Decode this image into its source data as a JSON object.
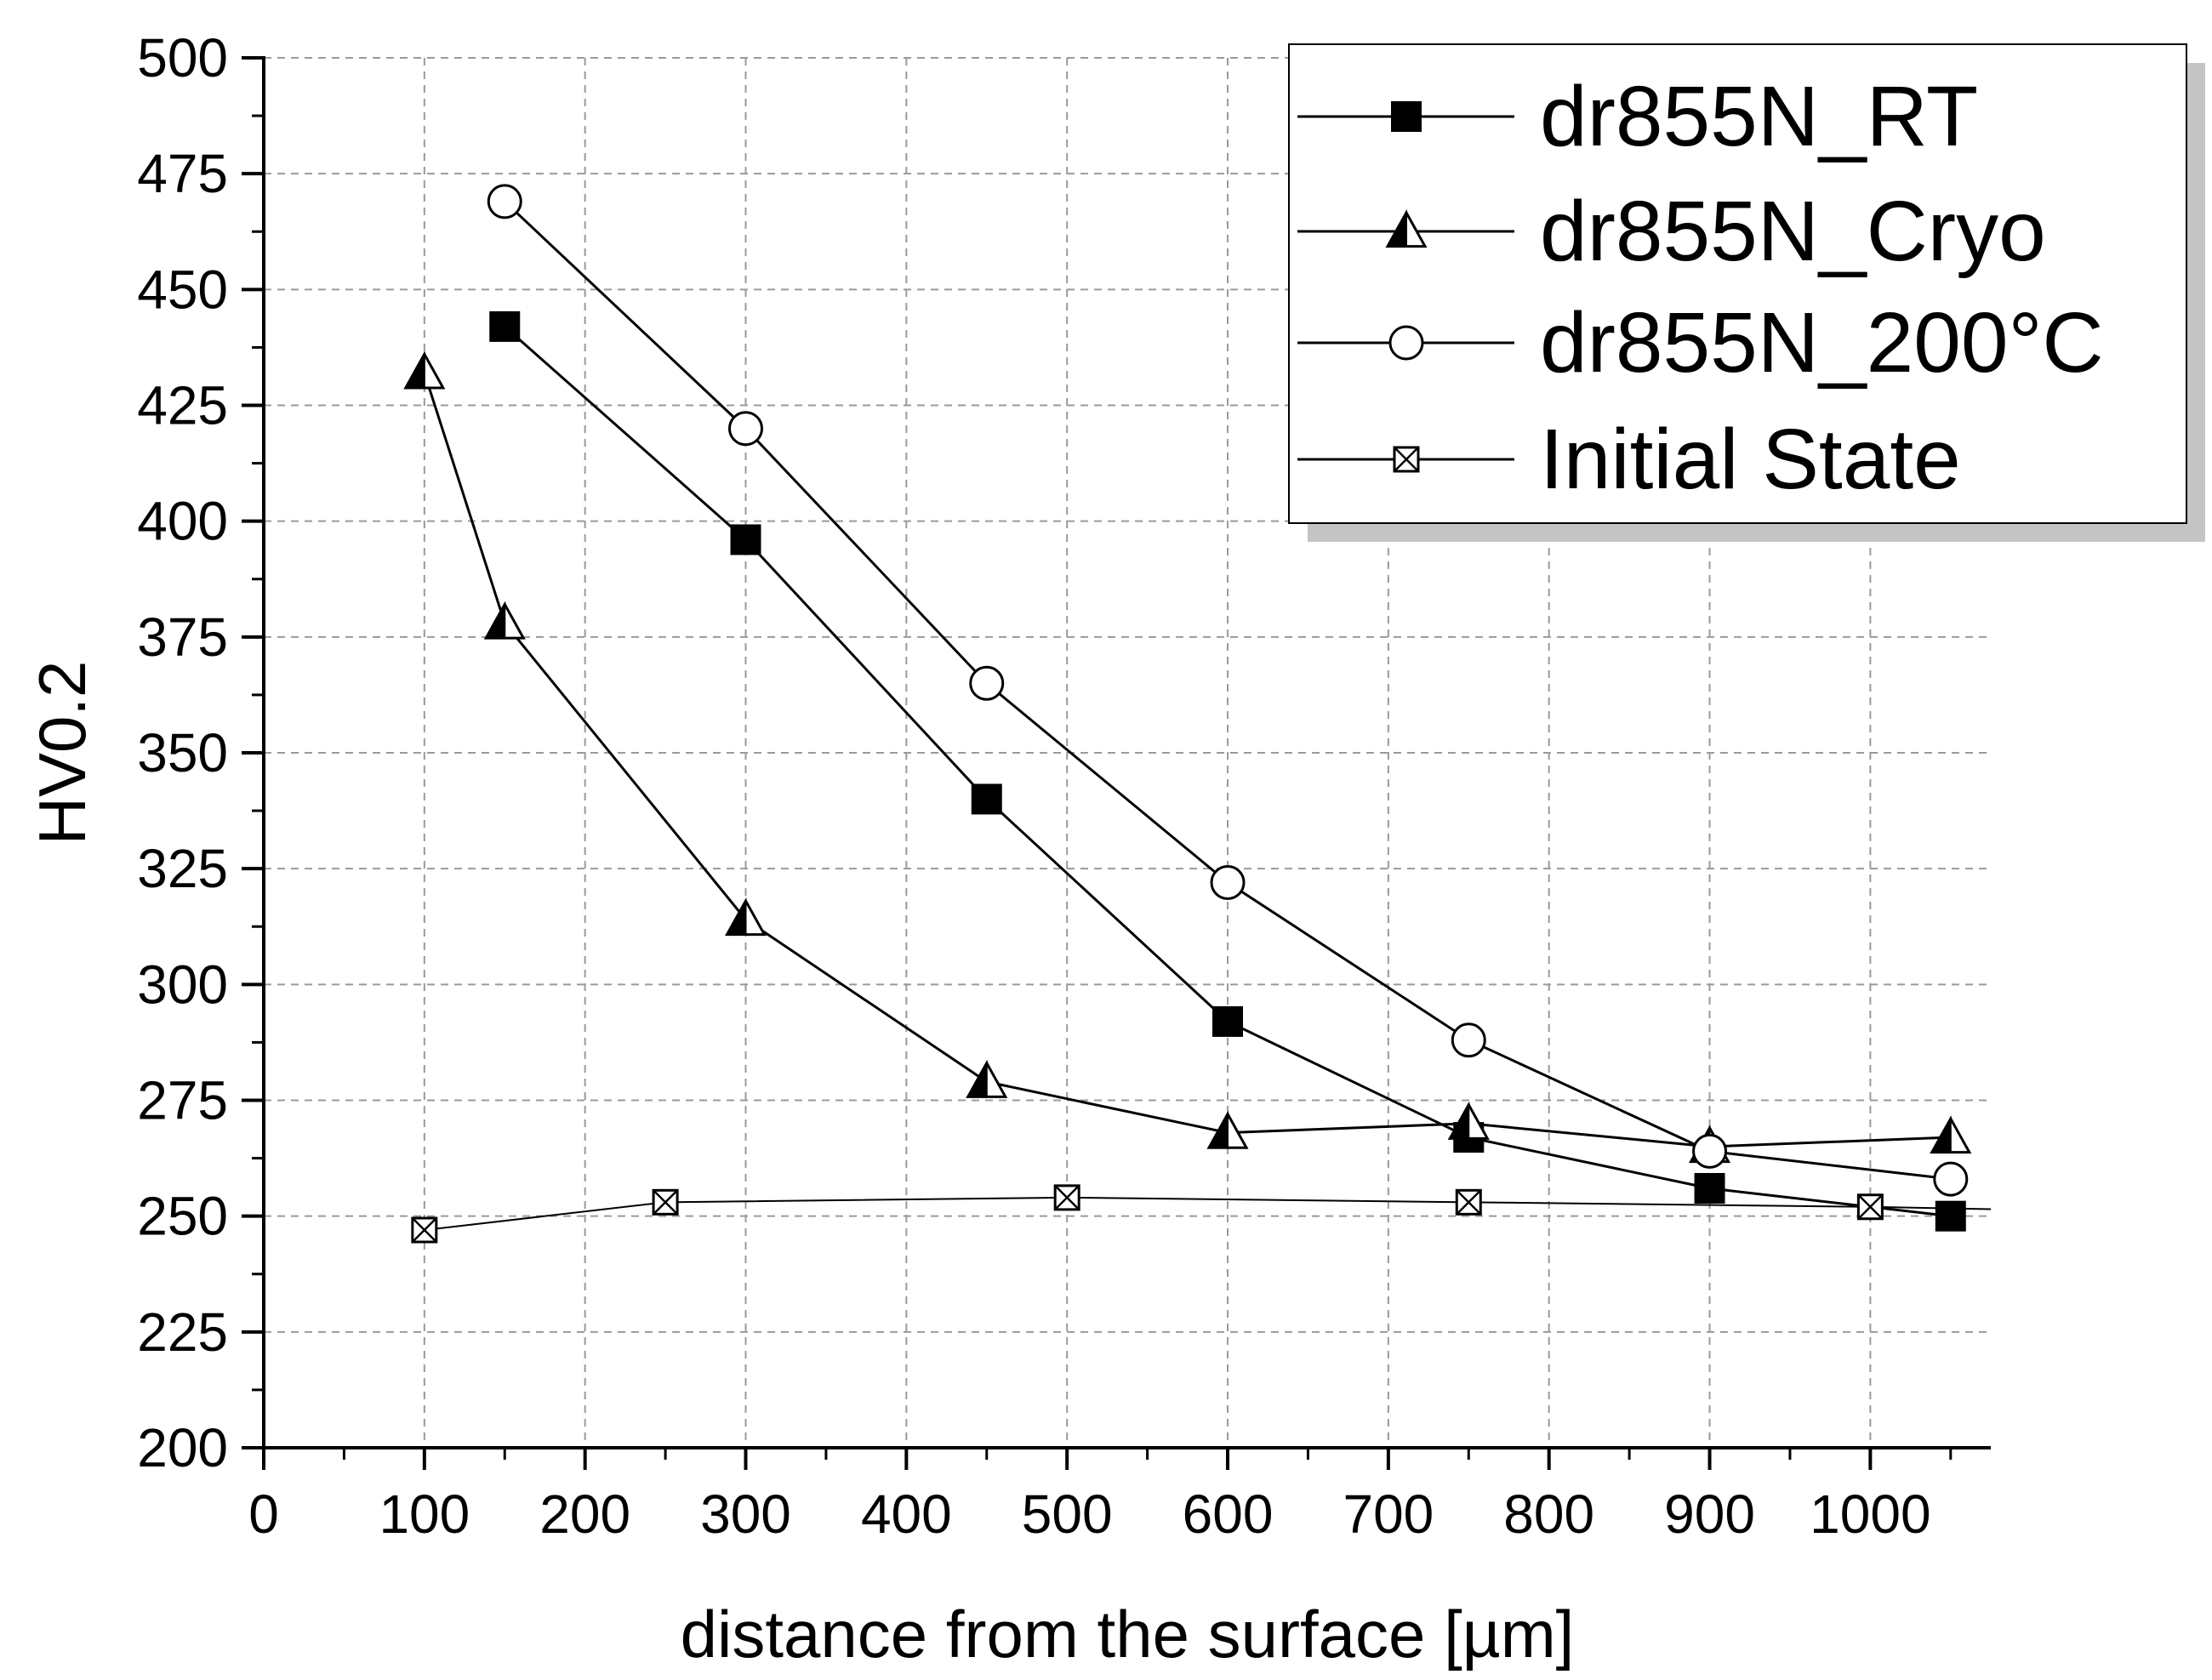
{
  "chart_data": {
    "type": "line",
    "title": "",
    "xlabel": "distance from the surface [µm]",
    "ylabel": "HV0.2",
    "xlim": [
      0,
      1075
    ],
    "ylim": [
      200,
      500
    ],
    "xticks": [
      0,
      100,
      200,
      300,
      400,
      500,
      600,
      700,
      800,
      900,
      1000
    ],
    "xtick_labels": [
      "0",
      "100",
      "200",
      "300",
      "400",
      "500",
      "600",
      "700",
      "800",
      "900",
      "1000"
    ],
    "yticks": [
      200,
      225,
      250,
      275,
      300,
      325,
      350,
      375,
      400,
      425,
      450,
      475,
      500
    ],
    "ytick_labels": [
      "200",
      "225",
      "250",
      "275",
      "300",
      "325",
      "350",
      "375",
      "400",
      "425",
      "450",
      "475",
      "500"
    ],
    "grid": true,
    "legend_position": "top-right",
    "series": [
      {
        "name": "dr855N_RT",
        "marker": "filled-square",
        "x": [
          150,
          300,
          450,
          600,
          750,
          900,
          1050
        ],
        "values": [
          442,
          396,
          340,
          292,
          267,
          256,
          250
        ]
      },
      {
        "name": "dr855N_Cryo",
        "marker": "half-filled-triangle",
        "x": [
          100,
          150,
          300,
          450,
          600,
          750,
          900,
          1050
        ],
        "values": [
          432,
          378,
          314,
          279,
          268,
          270,
          265,
          267
        ]
      },
      {
        "name": "dr855N_200°C",
        "marker": "open-circle",
        "x": [
          150,
          300,
          450,
          600,
          750,
          900,
          1050
        ],
        "values": [
          469,
          420,
          365,
          322,
          288,
          264,
          258
        ]
      },
      {
        "name": "Initial State",
        "marker": "crossed-square",
        "x": [
          100,
          250,
          500,
          750,
          1000
        ],
        "values": [
          247,
          253,
          254,
          253,
          252
        ],
        "extends_to": 1075,
        "extends_to_value": 251.5
      }
    ]
  }
}
